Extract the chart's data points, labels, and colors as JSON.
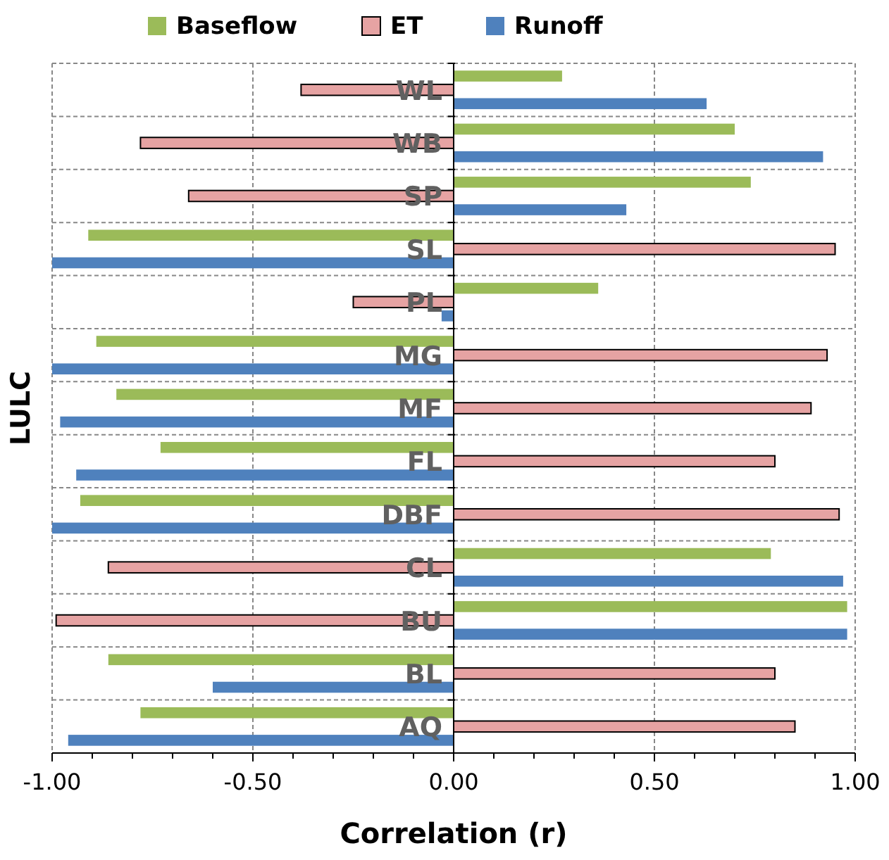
{
  "chart_data": {
    "type": "bar",
    "orientation": "horizontal",
    "xlabel": "Correlation (r)",
    "ylabel": "LULC",
    "categories": [
      "WL",
      "WB",
      "SP",
      "SL",
      "PL",
      "MG",
      "MF",
      "FL",
      "DBF",
      "CL",
      "BU",
      "BL",
      "AQ"
    ],
    "series": [
      {
        "name": "Baseflow",
        "color": "#9bbb59",
        "values": [
          0.27,
          0.7,
          0.74,
          -0.91,
          0.36,
          -0.89,
          -0.84,
          -0.73,
          -0.93,
          0.79,
          0.98,
          -0.86,
          -0.78
        ]
      },
      {
        "name": "ET",
        "color": "#e6a3a3",
        "values": [
          -0.38,
          -0.78,
          -0.66,
          0.95,
          -0.25,
          0.93,
          0.89,
          0.8,
          0.96,
          -0.86,
          -0.99,
          0.8,
          0.85
        ]
      },
      {
        "name": "Runoff",
        "color": "#4f81bd",
        "values": [
          0.63,
          0.92,
          0.43,
          -1.0,
          -0.03,
          -1.0,
          -0.98,
          -0.94,
          -1.0,
          0.97,
          0.98,
          -0.6,
          -0.96
        ]
      }
    ],
    "xlim": [
      -1,
      1
    ],
    "xticks": [
      {
        "value": -1,
        "label": "-1.00"
      },
      {
        "value": -0.9,
        "label": null
      },
      {
        "value": -0.8,
        "label": null
      },
      {
        "value": -0.7,
        "label": null
      },
      {
        "value": -0.6,
        "label": null
      },
      {
        "value": -0.5,
        "label": "-0.50"
      },
      {
        "value": -0.4,
        "label": null
      },
      {
        "value": -0.3,
        "label": null
      },
      {
        "value": -0.2,
        "label": null
      },
      {
        "value": -0.1,
        "label": null
      },
      {
        "value": 0,
        "label": "0.00"
      },
      {
        "value": 0.1,
        "label": null
      },
      {
        "value": 0.2,
        "label": null
      },
      {
        "value": 0.3,
        "label": null
      },
      {
        "value": 0.4,
        "label": null
      },
      {
        "value": 0.5,
        "label": "0.50"
      },
      {
        "value": 0.6,
        "label": null
      },
      {
        "value": 0.7,
        "label": null
      },
      {
        "value": 0.8,
        "label": null
      },
      {
        "value": 0.9,
        "label": null
      },
      {
        "value": 1,
        "label": "1.00"
      }
    ],
    "grid": true,
    "legend": "top"
  }
}
